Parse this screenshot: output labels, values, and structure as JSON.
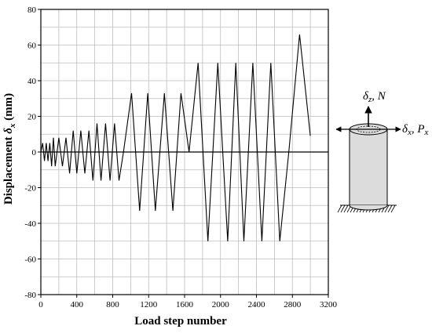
{
  "chart_data": {
    "type": "line",
    "xlabel": "Load step number",
    "ylabel_main": "Displacement ",
    "ylabel_symbol": "δ",
    "ylabel_sub": "x",
    "ylabel_unit": " (mm)",
    "xlim": [
      0,
      3200
    ],
    "ylim": [
      -80,
      80
    ],
    "xticks": [
      "0",
      "400",
      "800",
      "1200",
      "1600",
      "2000",
      "2400",
      "2800",
      "3200"
    ],
    "yticks": [
      "80",
      "60",
      "40",
      "20",
      "0",
      "-20",
      "-40",
      "-60",
      "-80"
    ],
    "grid": true,
    "series": [
      {
        "x": [
          0,
          20,
          40,
          60,
          80,
          100,
          120,
          140,
          160,
          200,
          240,
          280,
          320,
          360,
          400,
          445,
          490,
          535,
          580,
          625,
          670,
          720,
          770,
          820,
          870,
          920,
          1010,
          1100,
          1190,
          1275,
          1375,
          1470,
          1560,
          1650,
          1750,
          1860,
          1970,
          2080,
          2170,
          2260,
          2360,
          2460,
          2560,
          2660,
          2760,
          2880,
          3000
        ],
        "y": [
          0,
          5,
          -5,
          5,
          -5,
          5,
          -8,
          8,
          -8,
          8,
          -8,
          8,
          -12,
          12,
          -12,
          12,
          -12,
          12,
          -16,
          16,
          -16,
          16,
          -16,
          16,
          -16,
          0,
          33,
          -33,
          33,
          -33,
          33,
          -33,
          33,
          0,
          50,
          -50,
          50,
          -50,
          50,
          -50,
          50,
          -50,
          50,
          -50,
          0,
          66,
          9
        ]
      }
    ]
  },
  "legend": {
    "vertical_symbol": "δ",
    "vertical_sub": "z",
    "vertical_load": "N",
    "horizontal_symbol": "δ",
    "horizontal_sub": "x",
    "horizontal_load": "P",
    "horizontal_load_sub": "x"
  }
}
